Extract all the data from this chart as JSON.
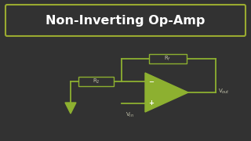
{
  "bg_color": "#323232",
  "title_text": "Non-Inverting Op-Amp",
  "title_box_edge": "#9aaa30",
  "title_text_color": "#ffffff",
  "opamp_color": "#8db030",
  "line_color": "#8db030",
  "label_color": "#c8c8b0",
  "Rf_label": "R$_f$",
  "R2_label": "R$_2$",
  "Vin_label": "V$_{in}$",
  "Vout_label": "V$_{out}$",
  "minus_label": "−",
  "plus_label": "+",
  "figsize": [
    3.2,
    1.8
  ],
  "dpi": 100
}
